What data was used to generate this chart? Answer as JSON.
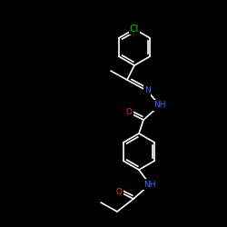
{
  "bg_color": "#000000",
  "bond_color": "#ffffff",
  "atom_colors": {
    "Cl": "#00cc00",
    "O": "#ff3333",
    "N": "#4466ff",
    "NH": "#4466ff",
    "C": "#ffffff"
  },
  "font_size_atom": 6.5,
  "fig_size": [
    2.5,
    2.5
  ],
  "dpi": 100
}
